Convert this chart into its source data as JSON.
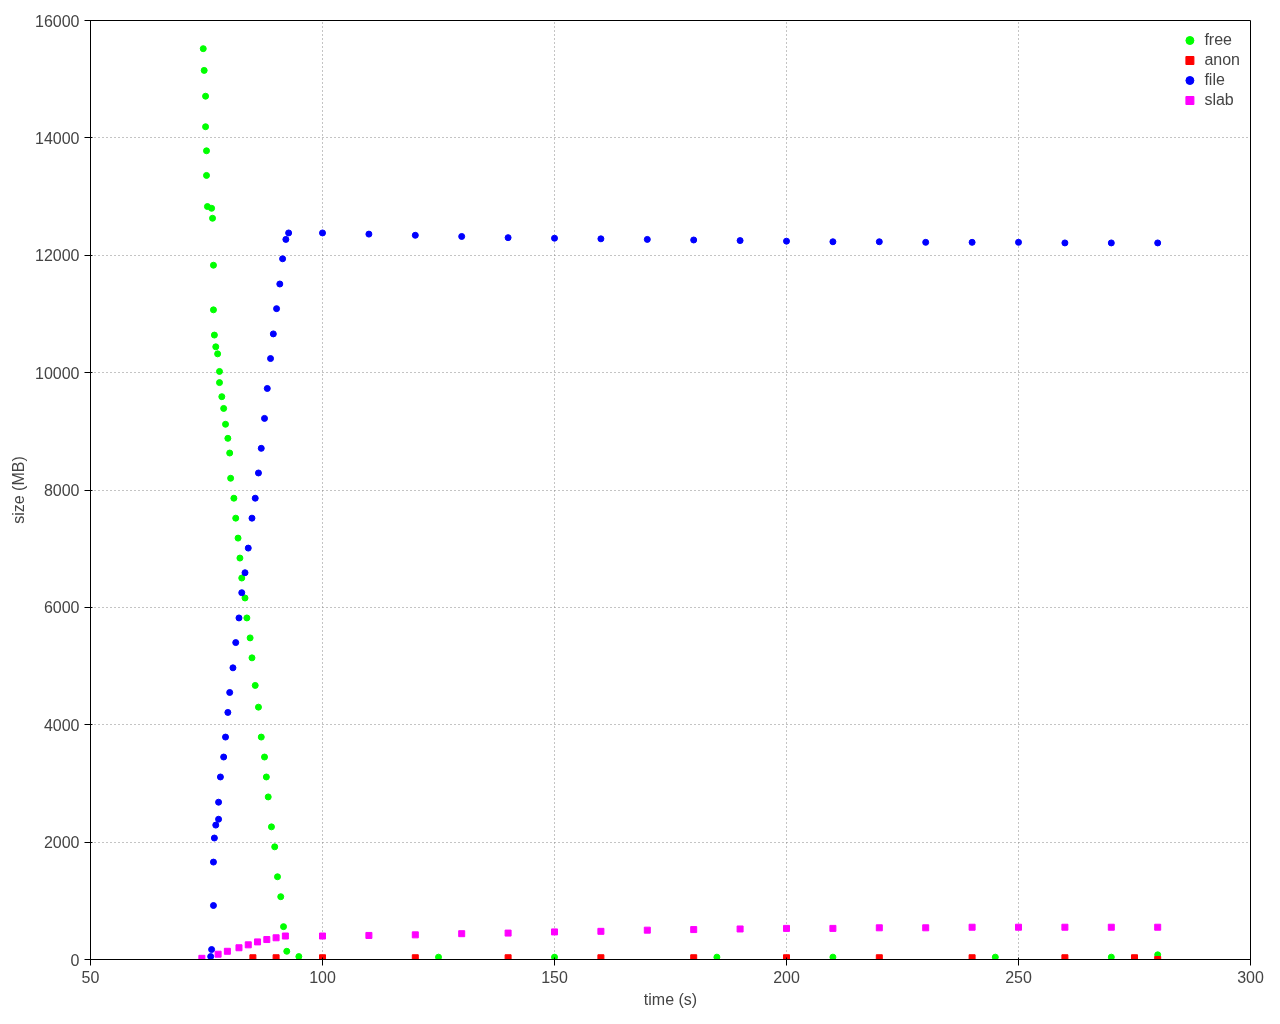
{
  "chart_data": {
    "type": "scatter",
    "xlabel": "time (s)",
    "ylabel": "size (MB)",
    "xlim": [
      50,
      300
    ],
    "ylim": [
      0,
      16000
    ],
    "xticks": [
      50,
      100,
      150,
      200,
      250,
      300
    ],
    "yticks": [
      0,
      2000,
      4000,
      6000,
      8000,
      10000,
      12000,
      14000,
      16000
    ],
    "grid": true,
    "legend": "top right",
    "series": [
      {
        "name": "free",
        "color": "#00ff00",
        "marker": "circle",
        "x": [
          74.3,
          74.5,
          74.8,
          74.8,
          75.0,
          75.0,
          75.2,
          76.1,
          76.3,
          76.5,
          76.5,
          76.7,
          77.0,
          77.4,
          77.8,
          77.8,
          78.3,
          78.7,
          79.1,
          79.6,
          80.0,
          80.2,
          80.9,
          81.3,
          81.8,
          82.2,
          82.6,
          83.3,
          83.7,
          84.4,
          84.8,
          85.5,
          86.2,
          86.8,
          87.5,
          87.9,
          88.3,
          89.0,
          89.7,
          90.3,
          91.0,
          91.6,
          92.3,
          94.9,
          125,
          150,
          185,
          210,
          245,
          270,
          280
        ],
        "values": [
          15520,
          15150,
          14710,
          14190,
          13780,
          13360,
          12830,
          12800,
          12630,
          11830,
          11070,
          10640,
          10440,
          10320,
          10020,
          9830,
          9590,
          9390,
          9120,
          8880,
          8630,
          8200,
          7860,
          7520,
          7180,
          6840,
          6500,
          6160,
          5820,
          5480,
          5140,
          4670,
          4300,
          3790,
          3450,
          3110,
          2770,
          2260,
          1920,
          1410,
          1070,
          560,
          140,
          50,
          40,
          40,
          40,
          40,
          40,
          40,
          80
        ]
      },
      {
        "name": "anon",
        "color": "#ff0000",
        "marker": "square",
        "x": [
          85,
          90,
          100,
          120,
          140,
          160,
          180,
          200,
          220,
          240,
          260,
          275,
          280
        ],
        "values": [
          30,
          30,
          30,
          30,
          30,
          30,
          30,
          30,
          30,
          30,
          30,
          30,
          0
        ]
      },
      {
        "name": "file",
        "color": "#0000ff",
        "marker": "circle",
        "x": [
          75.9,
          76.1,
          76.5,
          76.5,
          76.7,
          77.0,
          77.6,
          77.6,
          78.0,
          78.7,
          79.1,
          79.6,
          80.0,
          80.7,
          81.3,
          82.0,
          82.6,
          83.3,
          84.0,
          84.8,
          85.5,
          86.2,
          86.8,
          87.5,
          88.1,
          88.8,
          89.4,
          90.1,
          90.8,
          91.4,
          92.1,
          92.7,
          100,
          110,
          120,
          130,
          140,
          150,
          160,
          170,
          180,
          190,
          200,
          210,
          220,
          230,
          240,
          250,
          260,
          270,
          280
        ],
        "values": [
          50,
          170,
          920,
          1660,
          2070,
          2290,
          2390,
          2680,
          3110,
          3450,
          3790,
          4210,
          4550,
          4970,
          5400,
          5820,
          6250,
          6590,
          7010,
          7520,
          7860,
          8290,
          8710,
          9220,
          9730,
          10240,
          10660,
          11090,
          11510,
          11940,
          12270,
          12380,
          12380,
          12360,
          12340,
          12320,
          12300,
          12290,
          12280,
          12270,
          12260,
          12250,
          12240,
          12230,
          12230,
          12220,
          12220,
          12220,
          12210,
          12210,
          12210
        ]
      },
      {
        "name": "slab",
        "color": "#ff00ff",
        "marker": "square",
        "x": [
          74,
          77.5,
          79.5,
          82,
          84,
          86,
          88,
          90,
          92,
          100,
          110,
          120,
          130,
          140,
          150,
          160,
          170,
          180,
          190,
          200,
          210,
          220,
          230,
          240,
          250,
          260,
          270,
          280
        ],
        "values": [
          20,
          90,
          140,
          200,
          250,
          300,
          340,
          370,
          400,
          400,
          410,
          420,
          440,
          450,
          470,
          480,
          500,
          510,
          520,
          530,
          530,
          540,
          540,
          550,
          550,
          550,
          550,
          550
        ]
      }
    ]
  }
}
